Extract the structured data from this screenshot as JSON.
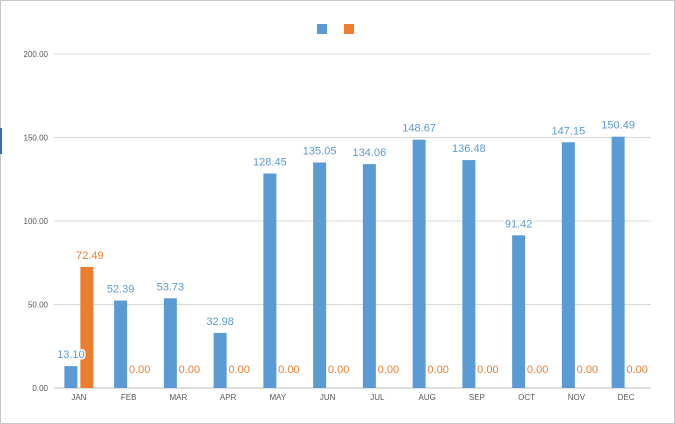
{
  "chart_data": {
    "type": "bar",
    "title": "",
    "xlabel": "",
    "ylabel": "",
    "categories": [
      "JAN",
      "FEB",
      "MAR",
      "APR",
      "MAY",
      "JUN",
      "JUL",
      "AUG",
      "SEP",
      "OCT",
      "NOV",
      "DEC"
    ],
    "series": [
      {
        "color": "#5b9bd5",
        "values": [
          13.1,
          52.39,
          53.73,
          32.98,
          128.45,
          135.05,
          134.06,
          148.67,
          136.48,
          91.42,
          147.15,
          150.49
        ],
        "labels": [
          "13.10",
          "52.39",
          "53.73",
          "32.98",
          "128.45",
          "135.05",
          "134.06",
          "148.67",
          "136.48",
          "91.42",
          "147.15",
          "150.49"
        ]
      },
      {
        "color": "#ed7d31",
        "values": [
          72.49,
          0,
          0,
          0,
          0,
          0,
          0,
          0,
          0,
          0,
          0,
          0
        ],
        "labels": [
          "72.49",
          "0.00",
          "0.00",
          "0.00",
          "0.00",
          "0.00",
          "0.00",
          "0.00",
          "0.00",
          "0.00",
          "0.00",
          "0.00"
        ]
      }
    ],
    "ylim": [
      0,
      200
    ],
    "yticks": [
      "0.00",
      "50.00",
      "100.00",
      "150.00",
      "200.00"
    ],
    "grid": true,
    "legend": "top-center"
  }
}
